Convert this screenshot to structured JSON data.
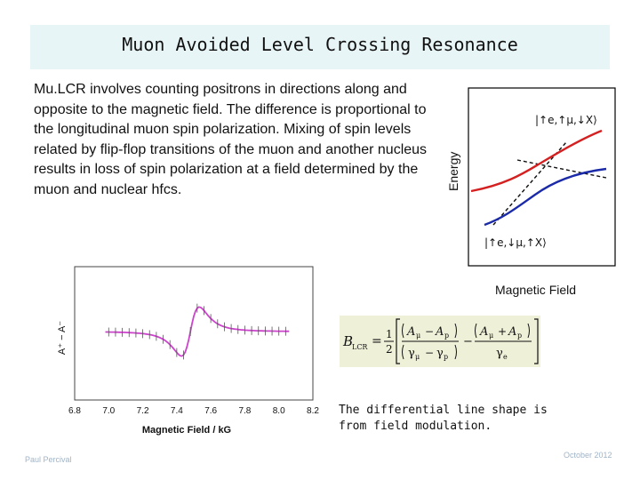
{
  "slide": {
    "title": "Muon Avoided Level Crossing Resonance",
    "body": "Mu.LCR involves counting positrons in directions along and opposite to the magnetic field. The difference is proportional to the longitudinal muon spin polarization. Mixing of spin levels related by flip-flop transitions of the muon and another nucleus results in loss of spin polarization at a field determined by the muon and nuclear hfcs.",
    "caption_line1": "The differential line shape is",
    "caption_line2": "from field modulation.",
    "footer_author": "Paul Percival",
    "footer_date": "October 2012"
  },
  "energy_diagram": {
    "ylabel": "Energy",
    "xlabel": "Magnetic Field",
    "upper_state": "|↑e,↑μ,↓X⟩",
    "lower_state": "|↑e,↓μ,↑X⟩",
    "colors": {
      "upper": "#d42020",
      "lower": "#1a2aa8",
      "crossing": "#111111"
    }
  },
  "spectrum": {
    "ylabel": "A⁺ − A⁻",
    "xlabel": "Magnetic Field / kG",
    "xticks": [
      "6.8",
      "7.0",
      "7.2",
      "7.4",
      "7.6",
      "7.8",
      "8.0",
      "8.2"
    ],
    "xlim": [
      6.8,
      8.2
    ],
    "series_color": "#cc44cc"
  },
  "formula": {
    "lhs": "B",
    "lhs_sub": "LCR",
    "eq": "=",
    "half_num": "1",
    "half_den": "2",
    "t1_num": "A",
    "t1_num_sub": "μ",
    "t1_minus": "−",
    "t1_num2": "A",
    "t1_num2_sub": "p",
    "t1_den": "γ",
    "t1_den_sub": "μ",
    "t1_den_minus": "−",
    "t1_den2": "γ",
    "t1_den2_sub": "p",
    "mid_minus": "−",
    "t2_num": "A",
    "t2_num_sub": "μ",
    "t2_plus": "+",
    "t2_num2": "A",
    "t2_num2_sub": "p",
    "t2_den": "γ",
    "t2_den_sub": "e"
  }
}
